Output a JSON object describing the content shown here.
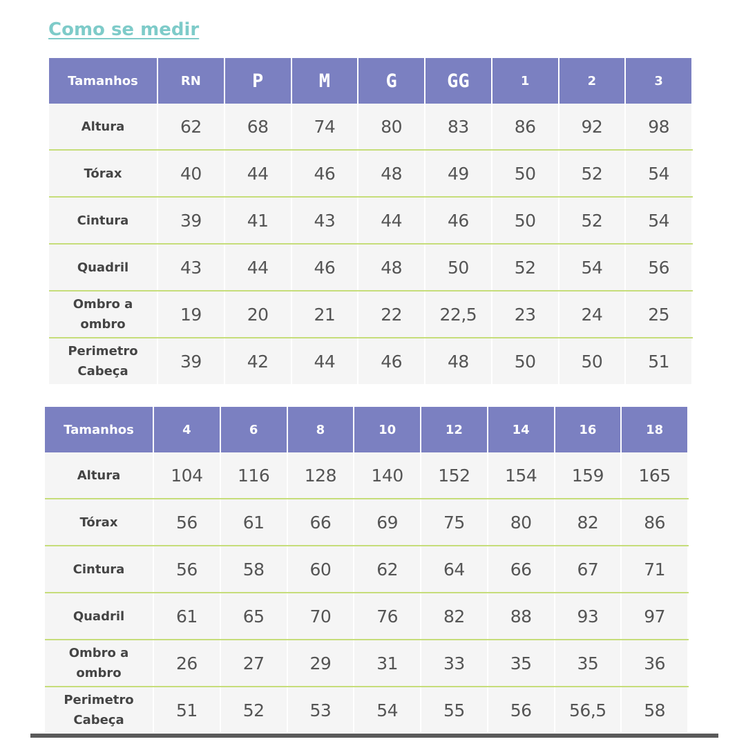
{
  "link": {
    "label": "Como se medir"
  },
  "tables": [
    {
      "header_label": "Tamanhos",
      "sizes": [
        "RN",
        "P",
        "M",
        "G",
        "GG",
        "1",
        "2",
        "3"
      ],
      "rows": [
        {
          "label": [
            "Altura"
          ],
          "values": [
            "62",
            "68",
            "74",
            "80",
            "83",
            "86",
            "92",
            "98"
          ]
        },
        {
          "label": [
            "Tórax"
          ],
          "values": [
            "40",
            "44",
            "46",
            "48",
            "49",
            "50",
            "52",
            "54"
          ]
        },
        {
          "label": [
            "Cintura"
          ],
          "values": [
            "39",
            "41",
            "43",
            "44",
            "46",
            "50",
            "52",
            "54"
          ]
        },
        {
          "label": [
            "Quadril"
          ],
          "values": [
            "43",
            "44",
            "46",
            "48",
            "50",
            "52",
            "54",
            "56"
          ]
        },
        {
          "label": [
            "Ombro a",
            "ombro"
          ],
          "values": [
            "19",
            "20",
            "21",
            "22",
            "22,5",
            "23",
            "24",
            "25"
          ]
        },
        {
          "label": [
            "Perimetro",
            "Cabeça"
          ],
          "values": [
            "39",
            "42",
            "44",
            "46",
            "48",
            "50",
            "50",
            "51"
          ]
        }
      ]
    },
    {
      "header_label": "Tamanhos",
      "sizes": [
        "4",
        "6",
        "8",
        "10",
        "12",
        "14",
        "16",
        "18"
      ],
      "rows": [
        {
          "label": [
            "Altura"
          ],
          "values": [
            "104",
            "116",
            "128",
            "140",
            "152",
            "154",
            "159",
            "165"
          ]
        },
        {
          "label": [
            "Tórax"
          ],
          "values": [
            "56",
            "61",
            "66",
            "69",
            "75",
            "80",
            "82",
            "86"
          ]
        },
        {
          "label": [
            "Cintura"
          ],
          "values": [
            "56",
            "58",
            "60",
            "62",
            "64",
            "66",
            "67",
            "71"
          ]
        },
        {
          "label": [
            "Quadril"
          ],
          "values": [
            "61",
            "65",
            "70",
            "76",
            "82",
            "88",
            "93",
            "97"
          ]
        },
        {
          "label": [
            "Ombro a",
            "ombro"
          ],
          "values": [
            "26",
            "27",
            "29",
            "31",
            "33",
            "35",
            "35",
            "36"
          ]
        },
        {
          "label": [
            "Perimetro",
            "Cabeça"
          ],
          "values": [
            "51",
            "52",
            "53",
            "54",
            "55",
            "56",
            "56,5",
            "58"
          ]
        }
      ]
    }
  ],
  "colors": {
    "link": "#7ecbc9",
    "header_bg": "#7b80c1",
    "row_divider": "#c6dd7a",
    "cell_bg": "#f5f5f5"
  }
}
